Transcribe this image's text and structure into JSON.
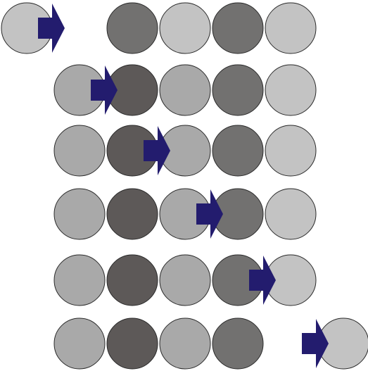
{
  "colors": {
    "background": "#ffffff",
    "outline": "#2a2a2a",
    "arrow": "#231c6e",
    "shade_light": "#c3c3c3",
    "shade_mid_light": "#a9a9a9",
    "shade_mid_dark": "#727170",
    "shade_dark": "#5d5958"
  },
  "rows": [
    {
      "circles": [
        "shade_light",
        null,
        "shade_mid_dark",
        "shade_light",
        "shade_mid_dark",
        "shade_light"
      ],
      "arrow_after_slot": 0
    },
    {
      "circles": [
        null,
        "shade_mid_light",
        "shade_dark",
        "shade_mid_light",
        "shade_mid_dark",
        "shade_light"
      ],
      "arrow_after_slot": 1
    },
    {
      "circles": [
        null,
        "shade_mid_light",
        "shade_dark",
        "shade_mid_light",
        "shade_mid_dark",
        "shade_light"
      ],
      "arrow_after_slot": 2
    },
    {
      "circles": [
        null,
        "shade_mid_light",
        "shade_dark",
        "shade_mid_light",
        "shade_mid_dark",
        "shade_light"
      ],
      "arrow_after_slot": 3
    },
    {
      "circles": [
        null,
        "shade_mid_light",
        "shade_dark",
        "shade_mid_light",
        "shade_mid_dark",
        "shade_light"
      ],
      "arrow_after_slot": 4
    },
    {
      "circles": [
        null,
        "shade_mid_light",
        "shade_dark",
        "shade_mid_light",
        "shade_mid_dark",
        null,
        "shade_light"
      ],
      "arrow_after_slot": 5
    }
  ],
  "arrow_icon": "right-arrow-icon"
}
